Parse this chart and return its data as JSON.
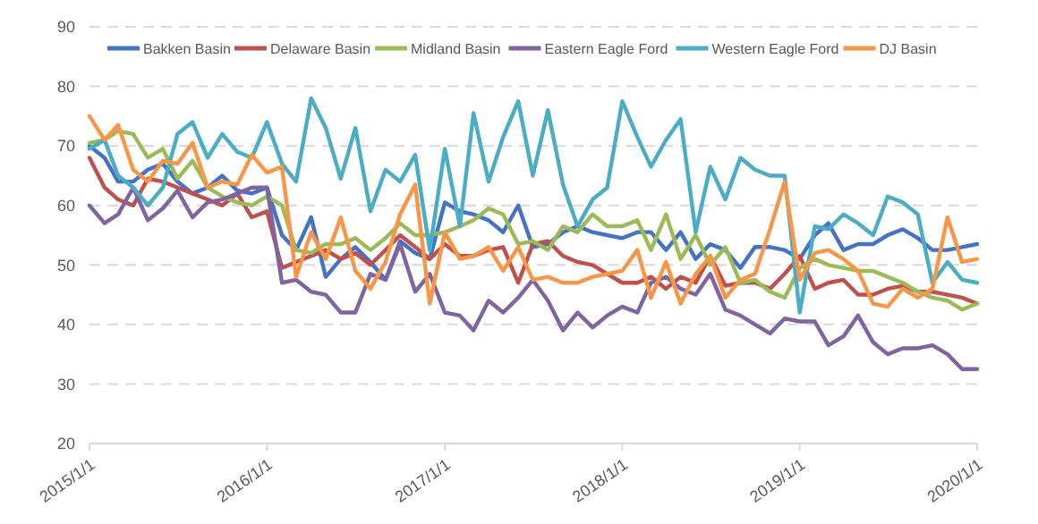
{
  "chart_data": {
    "type": "line",
    "x": [
      "2015-01",
      "2015-02",
      "2015-03",
      "2015-04",
      "2015-05",
      "2015-06",
      "2015-07",
      "2015-08",
      "2015-09",
      "2015-10",
      "2015-11",
      "2015-12",
      "2016-01",
      "2016-02",
      "2016-03",
      "2016-04",
      "2016-05",
      "2016-06",
      "2016-07",
      "2016-08",
      "2016-09",
      "2016-10",
      "2016-11",
      "2016-12",
      "2017-01",
      "2017-02",
      "2017-03",
      "2017-04",
      "2017-05",
      "2017-06",
      "2017-07",
      "2017-08",
      "2017-09",
      "2017-10",
      "2017-11",
      "2017-12",
      "2018-01",
      "2018-02",
      "2018-03",
      "2018-04",
      "2018-05",
      "2018-06",
      "2018-07",
      "2018-08",
      "2018-09",
      "2018-10",
      "2018-11",
      "2018-12",
      "2019-01",
      "2019-02",
      "2019-03",
      "2019-04",
      "2019-05",
      "2019-06",
      "2019-07",
      "2019-08",
      "2019-09",
      "2019-10",
      "2019-11",
      "2019-12",
      "2020-01"
    ],
    "series": [
      {
        "name": "Bakken Basin",
        "color": "#4472c4",
        "values": [
          70,
          68,
          64,
          64,
          66,
          67,
          64,
          62,
          63,
          65,
          62.5,
          62,
          63,
          55,
          52.5,
          58,
          48,
          51,
          53,
          50.5,
          47.5,
          54,
          52,
          51,
          60.5,
          59,
          58.5,
          57.5,
          55.5,
          60,
          53,
          53.5,
          55.5,
          56.5,
          55.5,
          55,
          54.5,
          55.5,
          55.5,
          52.5,
          55.5,
          51,
          53.5,
          52.5,
          49.5,
          53,
          53,
          52.5,
          51,
          55,
          57,
          52.5,
          53.5,
          53.5,
          55,
          56,
          54.5,
          52.5,
          52.5,
          53,
          53.5
        ]
      },
      {
        "name": "Delaware Basin",
        "color": "#c0504d",
        "values": [
          68,
          63,
          61,
          60,
          64.5,
          64,
          63,
          62,
          61,
          60,
          62,
          58,
          59,
          49.5,
          50.5,
          51.5,
          52.5,
          51,
          52,
          50,
          52.5,
          55,
          53,
          51,
          53.5,
          51.5,
          51.5,
          52.5,
          53,
          47,
          53.5,
          54,
          51.5,
          50.5,
          50,
          48.5,
          47,
          47,
          48,
          46,
          48,
          47,
          51.5,
          46.5,
          47,
          47,
          46,
          48.5,
          51.5,
          46,
          47,
          47.5,
          45,
          45,
          46,
          46.5,
          45.5,
          45.5,
          45,
          44.5,
          43.5
        ]
      },
      {
        "name": "Midland Basin",
        "color": "#9bbb59",
        "values": [
          70.5,
          71,
          72.5,
          72,
          68,
          69.5,
          64.5,
          67.5,
          63,
          61.5,
          60.5,
          60,
          61.5,
          60,
          52.5,
          52,
          53.5,
          53.5,
          54.5,
          52.5,
          54.5,
          57,
          55,
          55,
          55.5,
          56.5,
          57.5,
          59.5,
          58.5,
          53.5,
          54,
          52.5,
          56.5,
          55.5,
          58.5,
          56.5,
          56.5,
          57.5,
          52.5,
          58.5,
          51,
          55,
          50,
          53,
          47,
          47.5,
          45.5,
          44.5,
          49.5,
          51,
          50,
          49.5,
          49,
          49,
          48,
          47,
          45.5,
          44.5,
          44,
          42.5,
          43.5
        ]
      },
      {
        "name": "Eastern Eagle Ford",
        "color": "#8064a2",
        "values": [
          60,
          57,
          58.5,
          63,
          57.5,
          59.5,
          62.5,
          58,
          60.5,
          61,
          62,
          63,
          63,
          47,
          47.5,
          45.5,
          45,
          42,
          42,
          48.5,
          47.5,
          53.5,
          45.5,
          48.5,
          42,
          41.5,
          39,
          44,
          42,
          44.5,
          47.5,
          44,
          39,
          42,
          39.5,
          41.5,
          43,
          42,
          47,
          48,
          46,
          45,
          48.5,
          42.5,
          41.5,
          40,
          38.5,
          41,
          40.5,
          40.5,
          36.5,
          38,
          41.5,
          37,
          35,
          36,
          36,
          36.5,
          35,
          32.5,
          32.5
        ]
      },
      {
        "name": "Western Eagle Ford",
        "color": "#4bacc6",
        "values": [
          69.5,
          71,
          65,
          63,
          60,
          63,
          72,
          74,
          68,
          72,
          69,
          68,
          74,
          67,
          64,
          78,
          73,
          64.5,
          73,
          59,
          66,
          64,
          68.5,
          52.5,
          69.5,
          56.5,
          75.5,
          64,
          71.5,
          77.5,
          65,
          76,
          63.5,
          56.5,
          61,
          63,
          77.5,
          71.5,
          66.5,
          71,
          74.5,
          55.5,
          66.5,
          61,
          68,
          66,
          65,
          65,
          42,
          56.5,
          56,
          58.5,
          57,
          55,
          61.5,
          60.5,
          58.5,
          47,
          50.5,
          47.5,
          47
        ]
      },
      {
        "name": "DJ Basin",
        "color": "#f79646",
        "values": [
          75,
          71,
          73.5,
          66,
          64,
          67.5,
          67,
          70.5,
          63,
          64,
          63.5,
          68.5,
          65.5,
          66.5,
          48,
          55.5,
          51,
          58,
          49,
          46,
          50.5,
          58.5,
          63.5,
          43.5,
          55.5,
          51,
          51.5,
          53,
          49,
          53,
          47.5,
          48,
          47,
          47,
          48,
          48.5,
          49,
          52.5,
          44.5,
          50.5,
          43.5,
          48.5,
          51.5,
          44.5,
          47.5,
          48.5,
          56,
          64,
          47.5,
          52,
          52.5,
          51,
          49,
          43.5,
          43,
          46,
          44.5,
          46,
          58,
          50.5,
          51
        ]
      }
    ],
    "xlim": [
      "2015-01",
      "2020-01"
    ],
    "xticks": [
      {
        "value": "2015-01",
        "label": "2015/1/1"
      },
      {
        "value": "2016-01",
        "label": "2016/1/1"
      },
      {
        "value": "2017-01",
        "label": "2017/1/1"
      },
      {
        "value": "2018-01",
        "label": "2018/1/1"
      },
      {
        "value": "2019-01",
        "label": "2019/1/1"
      },
      {
        "value": "2020-01",
        "label": "2020/1/1"
      }
    ],
    "ylim": [
      20,
      90
    ],
    "yticks": [
      20,
      30,
      40,
      50,
      60,
      70,
      80,
      90
    ],
    "grid": "y",
    "legend": "top",
    "line_style": "solid",
    "marker": "none"
  }
}
